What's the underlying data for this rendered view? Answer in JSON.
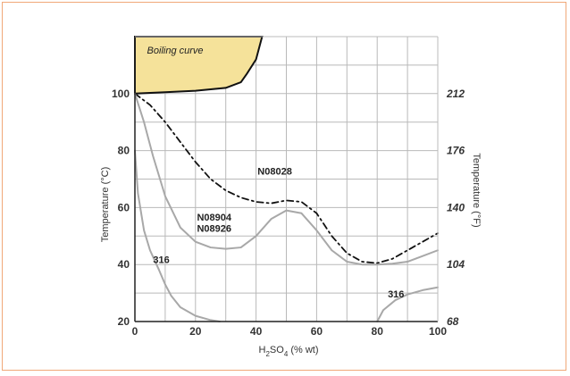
{
  "chart_data": {
    "type": "line",
    "xlabel": "H2SO4 (% wt)",
    "xlabel_parts": {
      "before": "H",
      "sub1": "2",
      "mid": "SO",
      "sub2": "4",
      "after": " (% wt)"
    },
    "ylabel_left": "Temperature (°C)",
    "ylabel_right": "Temperature (°F)",
    "xlim": [
      0,
      100
    ],
    "ylim": [
      20,
      120
    ],
    "x_ticks": [
      "0",
      "20",
      "40",
      "60",
      "80",
      "100"
    ],
    "y_ticks_left": [
      "20",
      "40",
      "60",
      "80",
      "100"
    ],
    "y_ticks_right": [
      "68",
      "104",
      "140",
      "176",
      "212"
    ],
    "grid": true,
    "boiling_label": "Boiling curve",
    "boiling_curve": {
      "x": [
        0,
        10,
        20,
        30,
        35,
        37,
        40,
        42
      ],
      "y": [
        100,
        100.5,
        101,
        102,
        104,
        107,
        112,
        120
      ]
    },
    "series": [
      {
        "name": "N08028",
        "style": "dashdot",
        "color": "#111111",
        "x": [
          0,
          5,
          10,
          15,
          20,
          25,
          30,
          35,
          40,
          45,
          50,
          55,
          60,
          65,
          70,
          75,
          80,
          85,
          90,
          95,
          100
        ],
        "y": [
          100,
          96,
          90,
          83,
          76,
          70,
          66,
          63.5,
          62,
          61.5,
          62.5,
          62,
          58,
          50,
          44,
          41,
          40.5,
          42,
          45,
          48,
          51
        ]
      },
      {
        "name": "N08904 N08926",
        "style": "solid",
        "color": "#a8a8a8",
        "x": [
          0,
          3,
          6,
          10,
          15,
          20,
          25,
          30,
          35,
          40,
          45,
          50,
          55,
          60,
          65,
          70,
          75,
          80,
          85,
          90,
          95,
          100
        ],
        "y": [
          100,
          90,
          78,
          64,
          53,
          48,
          46,
          45.5,
          46,
          50,
          56,
          59,
          58,
          52,
          45,
          41,
          40,
          40,
          40.3,
          41,
          43,
          45
        ]
      },
      {
        "name": "316",
        "style": "solid",
        "color": "#a8a8a8",
        "x": [
          0,
          1,
          3,
          5,
          8,
          10,
          12,
          15,
          20,
          25,
          28
        ],
        "y": [
          80,
          65,
          52,
          45,
          38,
          33,
          29,
          25,
          22,
          20.5,
          20
        ]
      },
      {
        "name": "316",
        "style": "solid",
        "color": "#a8a8a8",
        "x": [
          80,
          82,
          86,
          90,
          95,
          100
        ],
        "y": [
          20,
          24,
          27.5,
          29.5,
          31,
          32
        ]
      }
    ],
    "labels": [
      {
        "text": "N08028",
        "x": 40.5,
        "y": 71.5
      },
      {
        "text": "N08904",
        "x": 20.5,
        "y": 55.5
      },
      {
        "text": "N08926",
        "x": 20.5,
        "y": 51.5
      },
      {
        "text": "316",
        "x": 6,
        "y": 40.5
      },
      {
        "text": "316",
        "x": 83.5,
        "y": 28.5
      }
    ]
  }
}
